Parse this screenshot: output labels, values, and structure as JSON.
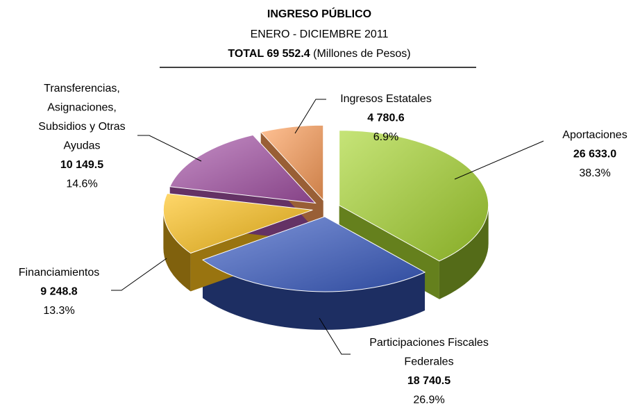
{
  "chart_data": {
    "type": "pie3d",
    "title": "INGRESO PÚBLICO",
    "subtitle": "ENERO - DICIEMBRE 2011",
    "total_label": "TOTAL 69 552.4",
    "units": "(Millones de Pesos)",
    "categories": [
      [
        "Aportaciones"
      ],
      [
        "Participaciones Fiscales",
        "Federales"
      ],
      [
        "Financiamientos"
      ],
      [
        "Transferencias,",
        "Asignaciones,",
        "Subsidios y Otras",
        "Ayudas"
      ],
      [
        "Ingresos Estatales"
      ]
    ],
    "values": [
      26633.0,
      18740.5,
      9248.8,
      10149.5,
      4780.6
    ],
    "value_labels": [
      "26 633.0",
      "18 740.5",
      "9 248.8",
      "10 149.5",
      "4 780.6"
    ],
    "percent_labels": [
      "38.3%",
      "26.9%",
      "13.3%",
      "14.6%",
      "6.9%"
    ],
    "colors": [
      "#a8d630",
      "#3a5cc4",
      "#ffc21a",
      "#a653a8",
      "#ff9f5a"
    ]
  }
}
